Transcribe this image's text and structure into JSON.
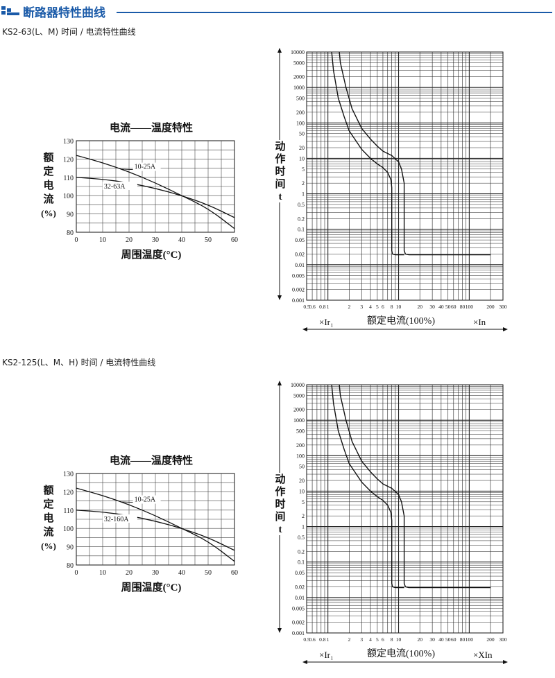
{
  "header": {
    "title": "断路器特性曲线",
    "accent": "#1a5aa8"
  },
  "sections": [
    {
      "subtitle": "KS2-63(L、M) 时间 / 电流特性曲线",
      "temp": {
        "title": "电流——温度特性",
        "ylabel": [
          "额",
          "定",
          "电",
          "流",
          "(%)"
        ],
        "xlabel": "周围温度(°C)",
        "series_labels": [
          "10-25A",
          "32-63A"
        ]
      },
      "tc": {
        "ylabel": [
          "动",
          "作",
          "时",
          "间",
          "t"
        ],
        "xlabel_left": "×Ir₁",
        "xlabel_center": "额定电流(100%)",
        "xlabel_right": "×In"
      }
    },
    {
      "subtitle": "KS2-125(L、M、H) 时间 / 电流特性曲线",
      "temp": {
        "title": "电流——温度特性",
        "ylabel": [
          "额",
          "定",
          "电",
          "流",
          "(%)"
        ],
        "xlabel": "周围温度(°C)",
        "series_labels": [
          "10-25A",
          "32-160A"
        ]
      },
      "tc": {
        "ylabel": [
          "动",
          "作",
          "时",
          "间",
          "t"
        ],
        "xlabel_left": "×Ir₁",
        "xlabel_center": "额定电流(100%)",
        "xlabel_right": "×XIn"
      }
    }
  ],
  "chart_data": [
    {
      "type": "line",
      "title": "电流——温度特性",
      "xlabel": "周围温度(°C)",
      "ylabel": "额定电流(%)",
      "xlim": [
        0,
        60
      ],
      "ylim": [
        80,
        130
      ],
      "xticks": [
        "0",
        "10",
        "20",
        "30",
        "40",
        "50",
        "60"
      ],
      "yticks": [
        "80",
        "90",
        "100",
        "110",
        "120",
        "130"
      ],
      "grid": true,
      "series": [
        {
          "name": "10-25A",
          "x": [
            0,
            10,
            20,
            30,
            40,
            50,
            60
          ],
          "y": [
            122,
            118,
            113,
            107,
            100,
            93,
            82
          ]
        },
        {
          "name": "32-63A",
          "x": [
            0,
            10,
            20,
            30,
            40,
            50,
            60
          ],
          "y": [
            110,
            109,
            107,
            104,
            100,
            95,
            88
          ]
        }
      ]
    },
    {
      "type": "line",
      "xlabel": "额定电流(100%)",
      "ylabel": "动作时间 t",
      "x_scale": "log",
      "y_scale": "log",
      "xlim": [
        0.5,
        300
      ],
      "ylim": [
        0.001,
        10000
      ],
      "xticks": [
        "0.5",
        "0.6",
        "0.8",
        "1",
        "2",
        "3",
        "4",
        "5",
        "6",
        "8",
        "10",
        "20",
        "30",
        "40",
        "50",
        "60",
        "80",
        "100",
        "200",
        "300"
      ],
      "yticks": [
        "10000",
        "5000",
        "2000",
        "1000",
        "500",
        "200",
        "100",
        "50",
        "20",
        "10",
        "5",
        "2",
        "1",
        "0.5",
        "0.2",
        "0.1",
        "0.05",
        "0.02",
        "0.01",
        "0.005",
        "0.002",
        "0.001"
      ],
      "grid": true,
      "series": [
        {
          "x": [
            1.13,
            1.2,
            1.4,
            1.7,
            2,
            3,
            4,
            5,
            6,
            7,
            7.8,
            8.0,
            8.0,
            8.2,
            9,
            12
          ],
          "y": [
            10000,
            3000,
            500,
            150,
            60,
            18,
            10,
            7,
            5.5,
            4,
            2.5,
            1.5,
            0.025,
            0.02,
            0.019,
            0.019
          ]
        },
        {
          "x": [
            1.45,
            1.5,
            1.8,
            2.2,
            3,
            4,
            5,
            6,
            8,
            10,
            11,
            12,
            12,
            12.5,
            14,
            200
          ],
          "y": [
            10000,
            5000,
            1000,
            250,
            70,
            35,
            22,
            16,
            12,
            8,
            5,
            2,
            0.025,
            0.02,
            0.019,
            0.019
          ]
        }
      ]
    },
    {
      "type": "line",
      "title": "电流——温度特性",
      "xlabel": "周围温度(°C)",
      "ylabel": "额定电流(%)",
      "xlim": [
        0,
        60
      ],
      "ylim": [
        80,
        130
      ],
      "xticks": [
        "0",
        "10",
        "20",
        "30",
        "40",
        "50",
        "60"
      ],
      "yticks": [
        "80",
        "90",
        "100",
        "110",
        "120",
        "130"
      ],
      "grid": true,
      "series": [
        {
          "name": "10-25A",
          "x": [
            0,
            10,
            20,
            30,
            40,
            50,
            60
          ],
          "y": [
            122,
            118,
            113,
            107,
            100,
            93,
            82
          ]
        },
        {
          "name": "32-160A",
          "x": [
            0,
            10,
            20,
            30,
            40,
            50,
            60
          ],
          "y": [
            110,
            109,
            107,
            104,
            100,
            95,
            88
          ]
        }
      ]
    },
    {
      "type": "line",
      "xlabel": "额定电流(100%)",
      "ylabel": "动作时间 t",
      "x_scale": "log",
      "y_scale": "log",
      "xlim": [
        0.5,
        300
      ],
      "ylim": [
        0.001,
        10000
      ],
      "xticks": [
        "0.5",
        "0.6",
        "0.8",
        "1",
        "2",
        "3",
        "4",
        "5",
        "6",
        "8",
        "10",
        "20",
        "30",
        "40",
        "50",
        "60",
        "80",
        "100",
        "200",
        "300"
      ],
      "yticks": [
        "10000",
        "5000",
        "2000",
        "1000",
        "500",
        "200",
        "100",
        "50",
        "20",
        "10",
        "5",
        "2",
        "1",
        "0.5",
        "0.2",
        "0.1",
        "0.05",
        "0.02",
        "0.01",
        "0.005",
        "0.002",
        "0.001"
      ],
      "grid": true,
      "series": [
        {
          "x": [
            1.13,
            1.2,
            1.4,
            1.7,
            2,
            3,
            4,
            5,
            6,
            7,
            7.8,
            8.0,
            8.0,
            8.2,
            9,
            12
          ],
          "y": [
            10000,
            3000,
            500,
            150,
            60,
            18,
            10,
            7,
            5.5,
            4,
            2.5,
            1.5,
            0.025,
            0.02,
            0.019,
            0.019
          ]
        },
        {
          "x": [
            1.45,
            1.5,
            1.8,
            2.2,
            3,
            4,
            5,
            6,
            8,
            10,
            11,
            12,
            12,
            12.5,
            14,
            200
          ],
          "y": [
            10000,
            5000,
            1000,
            250,
            70,
            35,
            22,
            16,
            12,
            8,
            5,
            2,
            0.025,
            0.02,
            0.019,
            0.019
          ]
        }
      ]
    }
  ]
}
